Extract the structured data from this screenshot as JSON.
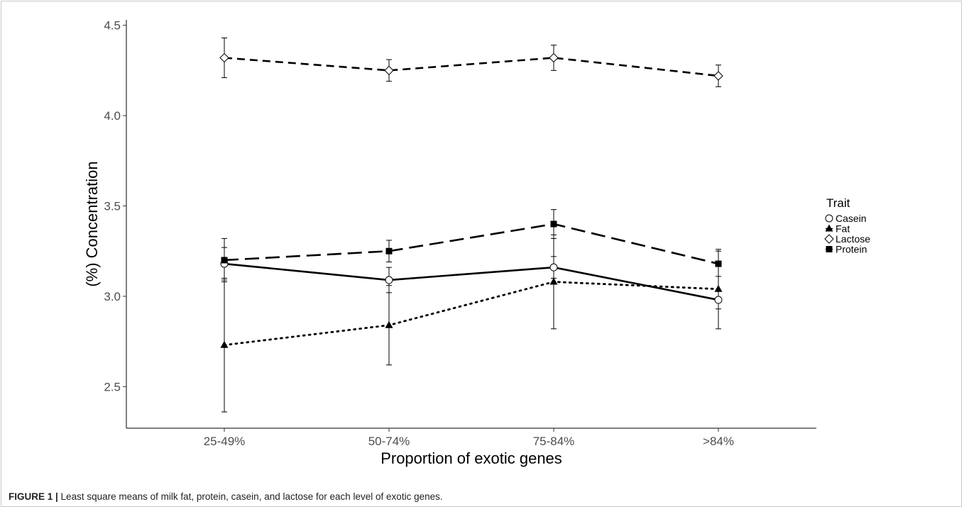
{
  "figure": {
    "caption_label": "FIGURE 1 |",
    "caption_text": " Least square means of milk fat, protein, casein, and lactose for each level of exotic genes."
  },
  "chart_data": {
    "type": "line",
    "title": "",
    "xlabel": "Proportion of exotic genes",
    "ylabel": "(%) Concentration",
    "categories": [
      "25-49%",
      "50-74%",
      "75-84%",
      ">84%"
    ],
    "ylim": [
      2.27,
      4.53
    ],
    "yticks": [
      2.5,
      3.0,
      3.5,
      4.0,
      4.5
    ],
    "ytick_labels": [
      "2.5",
      "3.0",
      "3.5",
      "4.0",
      "4.5"
    ],
    "grid": false,
    "legend": {
      "title": "Trait",
      "position": "right"
    },
    "series": [
      {
        "name": "Casein",
        "marker": "open-circle",
        "linestyle": "solid",
        "values": [
          3.18,
          3.09,
          3.16,
          2.98
        ],
        "lower": [
          3.09,
          3.02,
          3.1,
          2.93
        ],
        "upper": [
          3.27,
          3.16,
          3.22,
          3.03
        ]
      },
      {
        "name": "Fat",
        "marker": "filled-triangle",
        "linestyle": "dotted",
        "values": [
          2.73,
          2.84,
          3.08,
          3.04
        ],
        "lower": [
          2.36,
          2.62,
          2.82,
          2.82
        ],
        "upper": [
          3.1,
          3.06,
          3.34,
          3.26
        ]
      },
      {
        "name": "Lactose",
        "marker": "open-diamond",
        "linestyle": "dashed",
        "values": [
          4.32,
          4.25,
          4.32,
          4.22
        ],
        "lower": [
          4.21,
          4.19,
          4.25,
          4.16
        ],
        "upper": [
          4.43,
          4.31,
          4.39,
          4.28
        ]
      },
      {
        "name": "Protein",
        "marker": "filled-square",
        "linestyle": "longdash",
        "values": [
          3.2,
          3.25,
          3.4,
          3.18
        ],
        "lower": [
          3.08,
          3.19,
          3.32,
          3.11
        ],
        "upper": [
          3.32,
          3.31,
          3.48,
          3.25
        ]
      }
    ]
  }
}
